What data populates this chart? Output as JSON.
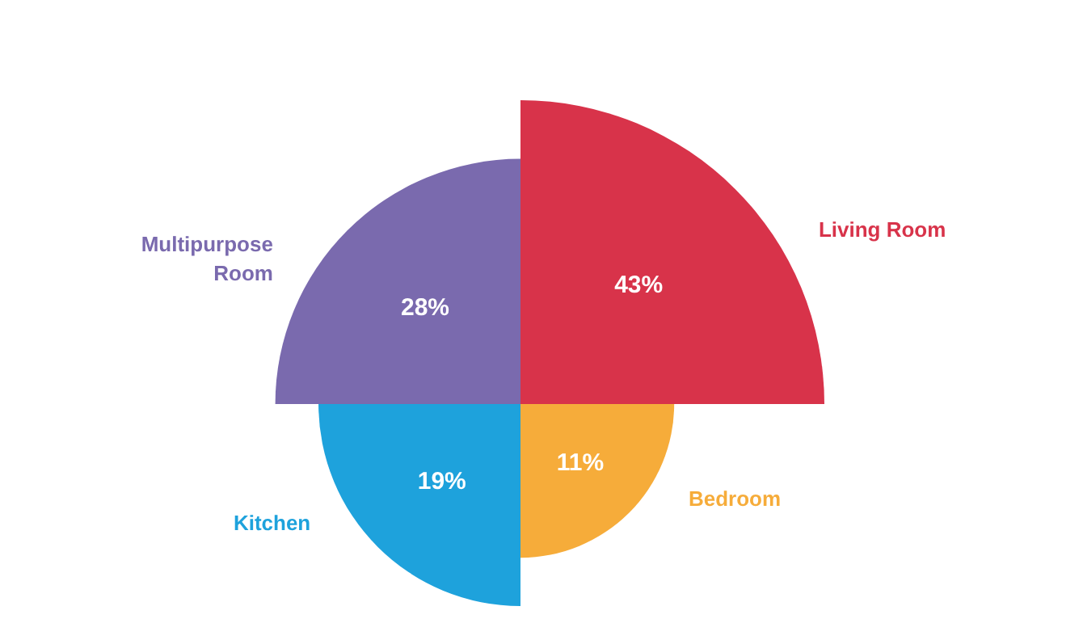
{
  "chart_data": {
    "type": "other",
    "categories": [
      "Living Room",
      "Bedroom",
      "Kitchen",
      "Multipurpose Room"
    ],
    "values": [
      43,
      11,
      19,
      28
    ],
    "colors": [
      "#d8334a",
      "#f6ac3a",
      "#1ea2dc",
      "#7a6aae"
    ],
    "value_labels": [
      "43%",
      "11%",
      "19%",
      "28%"
    ]
  }
}
